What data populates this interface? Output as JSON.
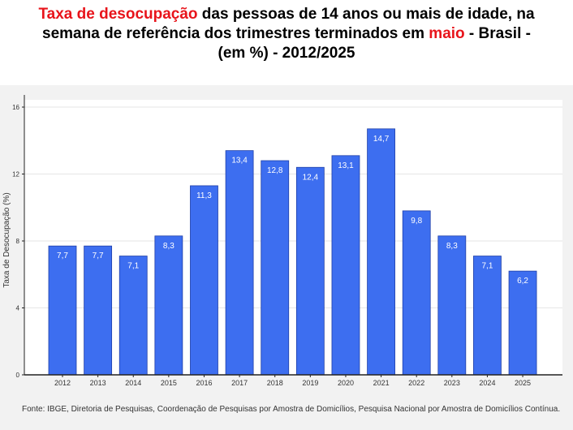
{
  "title": {
    "part1_highlight": "Taxa de desocupação",
    "part2": " das pessoas de 14 anos ou mais de idade, na",
    "part3": "semana de referência dos trimestres terminados em ",
    "part4_highlight": "maio",
    "part5": " - Brasil -",
    "part6": "(em %) - 2012/2025"
  },
  "colors": {
    "bar": "#3d6ef0",
    "highlight": "#e8141b"
  },
  "chart_data": {
    "type": "bar",
    "categories": [
      "2012",
      "2013",
      "2014",
      "2015",
      "2016",
      "2017",
      "2018",
      "2019",
      "2020",
      "2021",
      "2022",
      "2023",
      "2024",
      "2025"
    ],
    "values": [
      7.7,
      7.7,
      7.1,
      8.3,
      11.3,
      13.4,
      12.8,
      12.4,
      13.1,
      14.7,
      9.8,
      8.3,
      7.1,
      6.2
    ],
    "data_labels": [
      "7,7",
      "7,7",
      "7,1",
      "8,3",
      "11,3",
      "13,4",
      "12,8",
      "12,4",
      "13,1",
      "14,7",
      "9,8",
      "8,3",
      "7,1",
      "6,2"
    ],
    "yticks": [
      0,
      4,
      8,
      12,
      16
    ],
    "ylim": [
      0,
      16
    ],
    "xlabel": "",
    "ylabel": "Taxa de Desocupação (%)",
    "grid": true,
    "legend": "none"
  },
  "source": "Fonte: IBGE, Diretoria de Pesquisas, Coordenação de Pesquisas por Amostra de Domicílios, Pesquisa Nacional por Amostra de Domicílios Contínua."
}
